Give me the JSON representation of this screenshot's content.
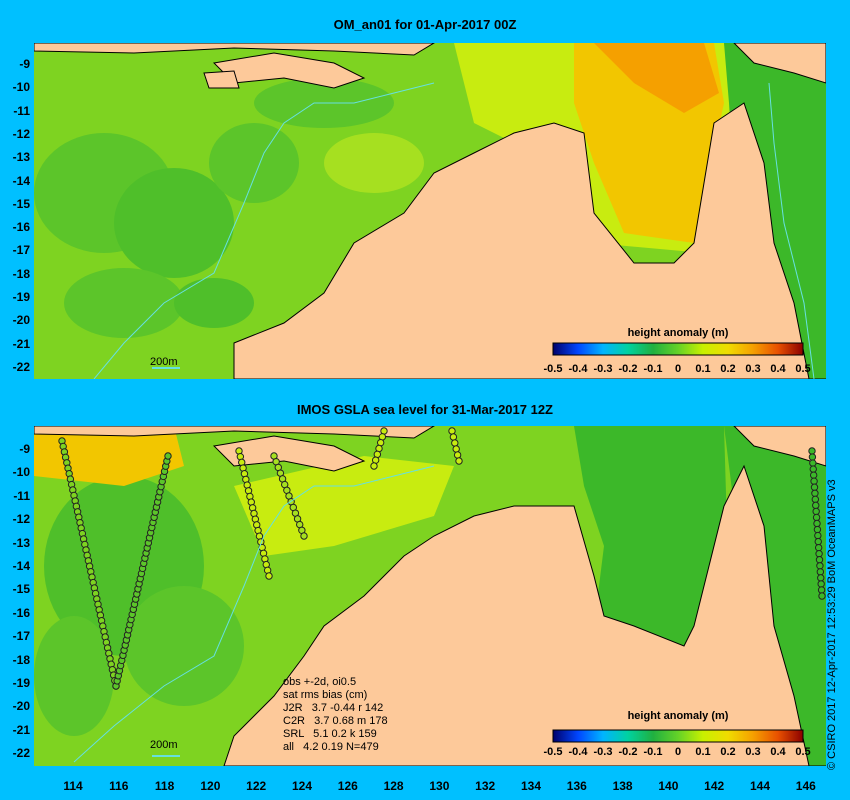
{
  "panel_top": {
    "title": "OM_an01 for 01-Apr-2017 00Z",
    "legend_title": "height anomaly (m)",
    "scale_label": "200m"
  },
  "panel_bottom": {
    "title": "IMOS GSLA sea level  for 31-Mar-2017 12Z",
    "legend_title": "height anomaly (m)",
    "scale_label": "200m",
    "stats": [
      "obs +-2d, oi0.5",
      "sat rms bias (cm)",
      "J2R   3.7 -0.44 r 142",
      "C2R   3.7 0.68 m 178",
      "SRL   5.1 0.2 k 159",
      "all   4.2 0.19 N=479"
    ]
  },
  "y_ticks": [
    "-9",
    "-10",
    "-11",
    "-12",
    "-13",
    "-14",
    "-15",
    "-16",
    "-17",
    "-18",
    "-19",
    "-20",
    "-21",
    "-22"
  ],
  "x_ticks": [
    "114",
    "116",
    "118",
    "120",
    "122",
    "124",
    "126",
    "128",
    "130",
    "132",
    "134",
    "136",
    "138",
    "140",
    "142",
    "144",
    "146"
  ],
  "legend_ticks": [
    "-0.5",
    "-0.4",
    "-0.3",
    "-0.2",
    "-0.1",
    "0",
    "0.1",
    "0.2",
    "0.3",
    "0.4",
    "0.5"
  ],
  "legend_range": [
    -0.5,
    0.5
  ],
  "credit": "© CSIRO 2017  12-Apr-2017 12:53:29 BoM OceanMAPS v3",
  "colors": {
    "background": "#00c0ff",
    "land": "#fdc99a",
    "ocean_main": "#7ed321",
    "ocean_dark": "#3cb829",
    "positive": "#f2c600",
    "contour": "#66e0e0"
  }
}
